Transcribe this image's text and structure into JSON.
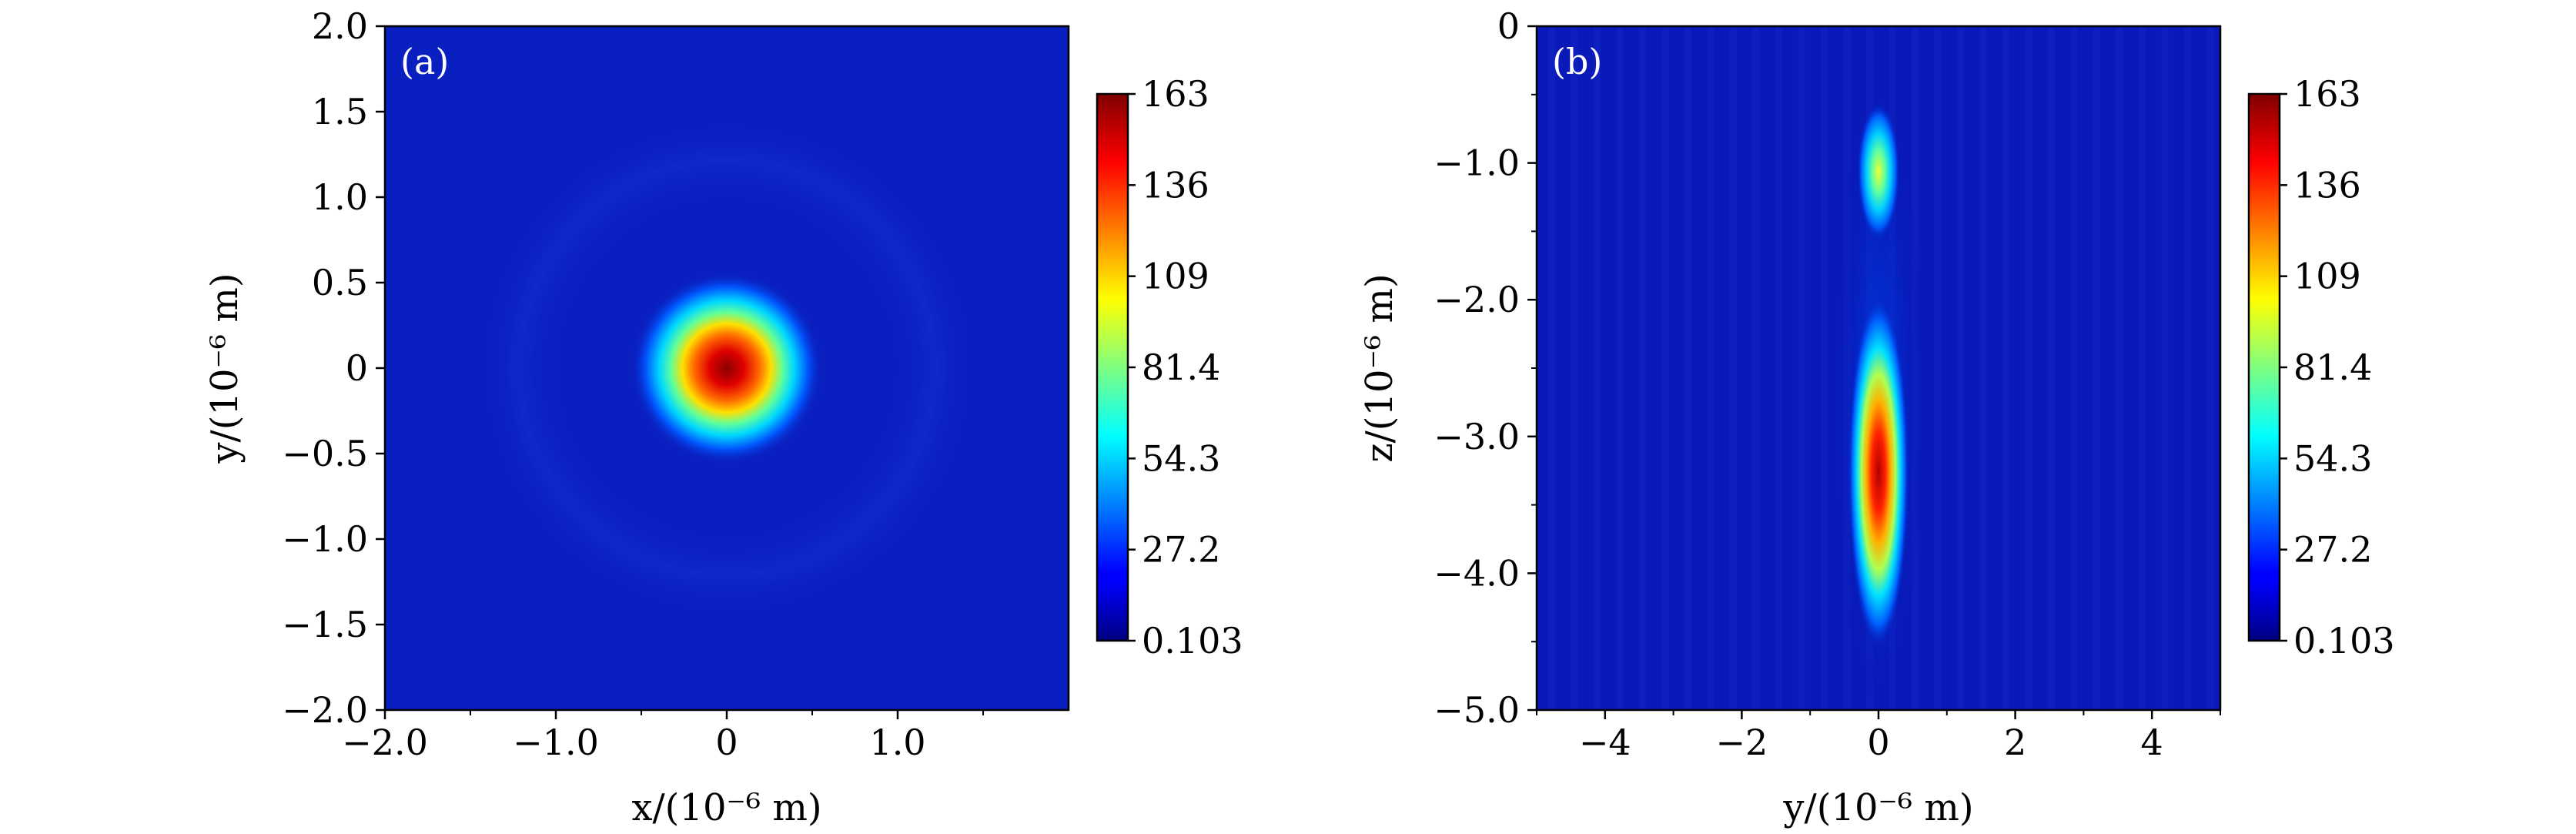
{
  "chart_data": [
    {
      "type": "heatmap",
      "panel_label": "(a)",
      "xlabel": "x/(10⁻⁶ m)",
      "ylabel": "y/(10⁻⁶ m)",
      "xlim": [
        -2.0,
        2.0
      ],
      "ylim": [
        -2.0,
        2.0
      ],
      "xticks": [
        {
          "value": -2.0,
          "label": "−2.0"
        },
        {
          "value": -1.0,
          "label": "−1.0"
        },
        {
          "value": 0,
          "label": "0"
        },
        {
          "value": 1.0,
          "label": "1.0"
        }
      ],
      "x_minor_ticks": [
        -1.5,
        -0.5,
        0.5,
        1.5
      ],
      "yticks": [
        {
          "value": 2.0,
          "label": "2.0"
        },
        {
          "value": 1.5,
          "label": "1.5"
        },
        {
          "value": 1.0,
          "label": "1.0"
        },
        {
          "value": 0.5,
          "label": "0.5"
        },
        {
          "value": 0,
          "label": "0"
        },
        {
          "value": -0.5,
          "label": "−0.5"
        },
        {
          "value": -1.0,
          "label": "−1.0"
        },
        {
          "value": -1.5,
          "label": "−1.5"
        },
        {
          "value": -2.0,
          "label": "−2.0"
        }
      ],
      "peak": {
        "x": 0,
        "y": 0,
        "value": 163
      },
      "colorbar": {
        "min": 0.103,
        "max": 163,
        "ticks": [
          "163",
          "136",
          "109",
          "81.4",
          "54.3",
          "27.2",
          "0.103"
        ],
        "colormap": "jet"
      },
      "grid": false
    },
    {
      "type": "heatmap",
      "panel_label": "(b)",
      "xlabel": "y/(10⁻⁶ m)",
      "ylabel": "z/(10⁻⁶ m)",
      "xlim": [
        -5,
        5
      ],
      "ylim": [
        -5.0,
        0
      ],
      "xticks": [
        {
          "value": -4,
          "label": "−4"
        },
        {
          "value": -2,
          "label": "−2"
        },
        {
          "value": 0,
          "label": "0"
        },
        {
          "value": 2,
          "label": "2"
        },
        {
          "value": 4,
          "label": "4"
        }
      ],
      "x_minor_ticks": [
        -5,
        -3,
        -1,
        1,
        3,
        5
      ],
      "yticks": [
        {
          "value": 0,
          "label": "0"
        },
        {
          "value": -1.0,
          "label": "−1.0"
        },
        {
          "value": -2.0,
          "label": "−2.0"
        },
        {
          "value": -3.0,
          "label": "−3.0"
        },
        {
          "value": -4.0,
          "label": "−4.0"
        },
        {
          "value": -5.0,
          "label": "−5.0"
        }
      ],
      "y_minor_ticks": [
        -0.5,
        -1.5,
        -2.5,
        -3.5,
        -4.5
      ],
      "hotspots": [
        {
          "y": 0,
          "z": -1.05,
          "value": 95
        },
        {
          "y": 0,
          "z": -3.35,
          "value": 163
        }
      ],
      "colorbar": {
        "min": 0.103,
        "max": 163,
        "ticks": [
          "163",
          "136",
          "109",
          "81.4",
          "54.3",
          "27.2",
          "0.103"
        ],
        "colormap": "jet"
      },
      "grid": false
    }
  ]
}
